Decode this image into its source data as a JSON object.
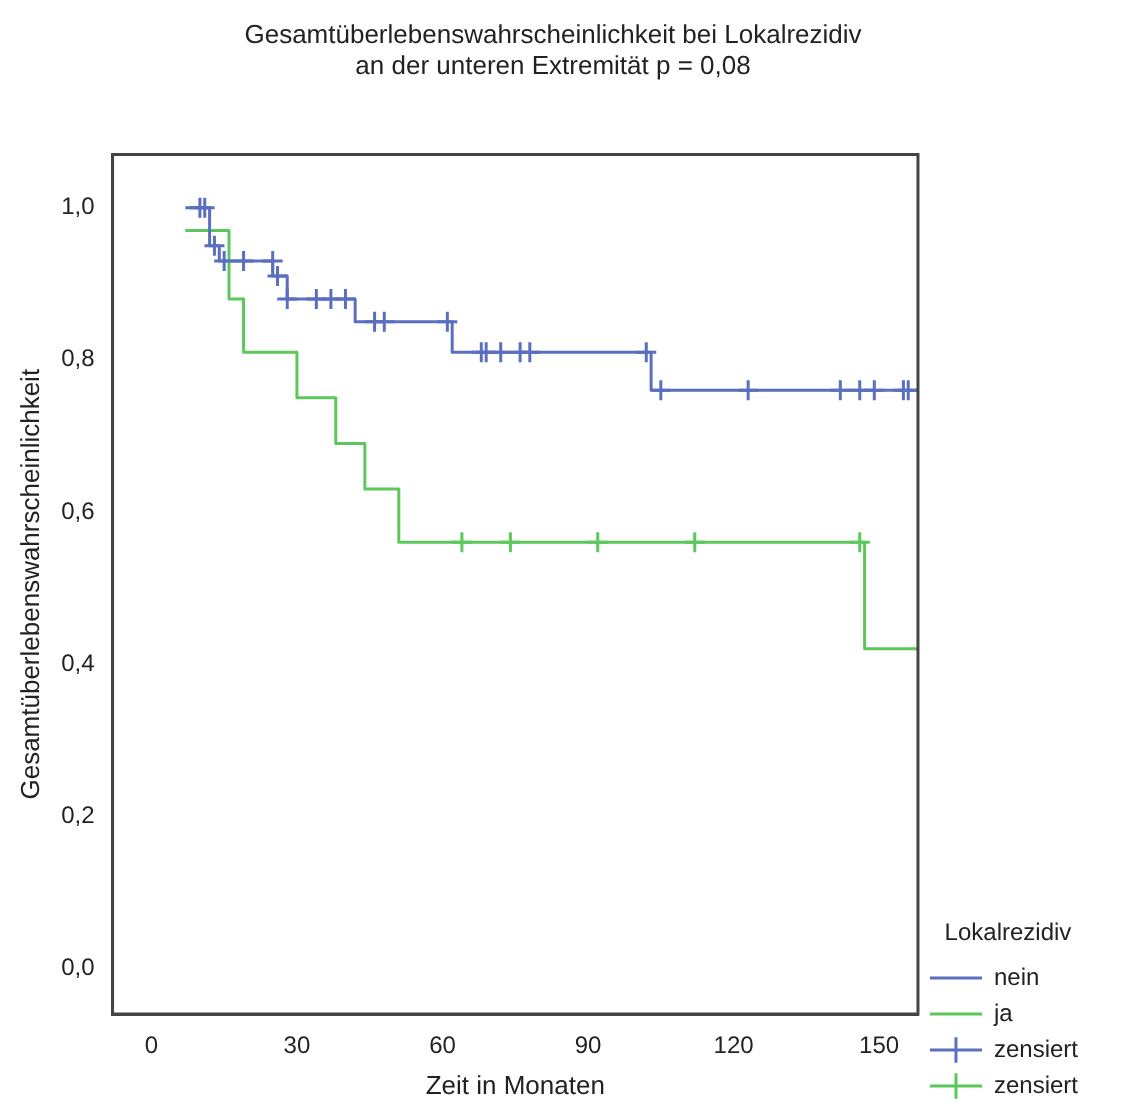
{
  "chart_data": {
    "type": "step",
    "title": "Gesamtüberlebenswahrscheinlichkeit bei Lokalrezidiv\nan der unteren Extremität p = 0,08",
    "xlabel": "Zeit in Monaten",
    "ylabel": "Gesamtüberlebenswahrscheinlichkeit",
    "legend_title": "Lokalrezidiv",
    "legend": "bottom right",
    "xlim": [
      -8,
      158
    ],
    "xticks": [
      0,
      30,
      60,
      90,
      120,
      150
    ],
    "ylim": [
      -0.06,
      1.07
    ],
    "yticks": [
      {
        "value": 0,
        "label": "0,0"
      },
      {
        "value": 0.2,
        "label": "0,2"
      },
      {
        "value": 0.4,
        "label": "0,4"
      },
      {
        "value": 0.6,
        "label": "0,6"
      },
      {
        "value": 0.8,
        "label": "0,8"
      },
      {
        "value": 1,
        "label": "1,0"
      }
    ],
    "series": [
      {
        "name": "nein",
        "marker": "none",
        "color": "#5a6fbf",
        "x": [
          7,
          12,
          14,
          25,
          28,
          42,
          62,
          103,
          158
        ],
        "values": [
          1.0,
          0.95,
          0.93,
          0.91,
          0.88,
          0.85,
          0.81,
          0.76,
          0.76
        ]
      },
      {
        "name": "ja",
        "marker": "none",
        "color": "#5cc85c",
        "x": [
          7,
          16,
          19,
          30,
          38,
          44,
          51,
          147,
          158
        ],
        "values": [
          0.97,
          0.88,
          0.81,
          0.75,
          0.69,
          0.63,
          0.56,
          0.42,
          0.42
        ]
      },
      {
        "name": "zensiert",
        "type": "scatter",
        "marker": "cross",
        "color": "#5a6fbf",
        "x": [
          10,
          11,
          13,
          15,
          19,
          25,
          26,
          28,
          34,
          37,
          40,
          46,
          48,
          61,
          68,
          69,
          72,
          76,
          78,
          102,
          105,
          123,
          142,
          146,
          149,
          155,
          156
        ],
        "values": [
          1.0,
          1.0,
          0.95,
          0.93,
          0.93,
          0.93,
          0.91,
          0.88,
          0.88,
          0.88,
          0.88,
          0.85,
          0.85,
          0.85,
          0.81,
          0.81,
          0.81,
          0.81,
          0.81,
          0.81,
          0.76,
          0.76,
          0.76,
          0.76,
          0.76,
          0.76,
          0.76
        ]
      },
      {
        "name": "zensiert",
        "type": "scatter",
        "marker": "cross",
        "color": "#5cc85c",
        "x": [
          64,
          74,
          92,
          112,
          146
        ],
        "values": [
          0.56,
          0.56,
          0.56,
          0.56,
          0.56
        ]
      }
    ]
  }
}
